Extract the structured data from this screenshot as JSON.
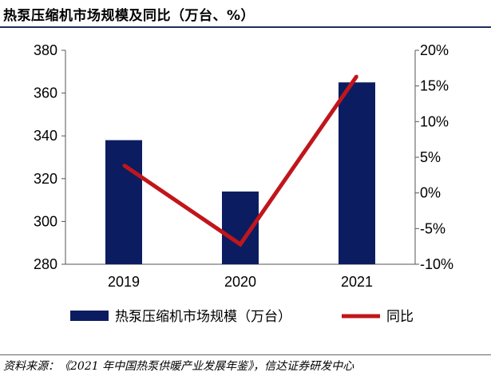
{
  "title": "热泵压缩机市场规模及同比（万台、%）",
  "source": "资料来源：《2021 年中国热泵供暖产业发展年鉴》，信达证券研发中心",
  "colors": {
    "bar": "#0b1d60",
    "line": "#c0161b"
  },
  "chart_data": {
    "type": "bar",
    "categories": [
      "2019",
      "2020",
      "2021"
    ],
    "series": [
      {
        "name": "热泵压缩机市场规模（万台）",
        "type": "bar",
        "axis": "left",
        "values": [
          338,
          314,
          365
        ]
      },
      {
        "name": "同比",
        "type": "line",
        "axis": "right",
        "values": [
          3.9,
          -7.2,
          16.4
        ]
      }
    ],
    "y_left": {
      "min": 280,
      "max": 380,
      "ticks": [
        380,
        360,
        340,
        320,
        300,
        280
      ]
    },
    "y_right": {
      "min": -10,
      "max": 20,
      "ticks": [
        "20%",
        "15%",
        "10%",
        "5%",
        "0%",
        "-5%",
        "-10%"
      ]
    },
    "legend": {
      "position": "bottom",
      "labels": [
        "热泵压缩机市场规模（万台）",
        "同比"
      ]
    },
    "grid": false
  }
}
